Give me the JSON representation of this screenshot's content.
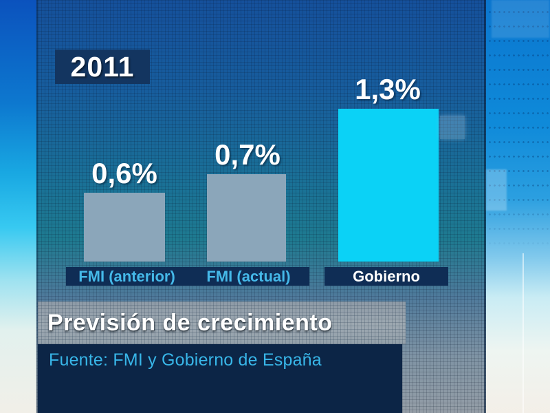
{
  "page": {
    "kind": "tv-news-graphic",
    "language": "es"
  },
  "chart_data": {
    "type": "bar",
    "title": "Previsión de crecimiento",
    "year_label": "2011",
    "source": "Fuente: FMI y  Gobierno de España",
    "categories": [
      "FMI (anterior)",
      "FMI (actual)",
      "Gobierno"
    ],
    "values": [
      0.6,
      0.7,
      1.3
    ],
    "value_labels": [
      "0,6%",
      "0,7%",
      "1,3%"
    ],
    "unit": "%",
    "ylim": [
      0,
      1.5
    ],
    "legend": "none",
    "grid": "decorative-background-grid-only",
    "bar_colors": [
      "#8ba6ba",
      "#8ba6ba",
      "#0bd2f6"
    ],
    "category_label_colors": [
      "#45b9e9",
      "#45b9e9",
      "#ffffff"
    ]
  },
  "colors": {
    "accent_cyan_bar": "#0bd2f6",
    "gray_bar": "#8ba6ba",
    "navy_box": "#0f2d55",
    "year_box": "#133560",
    "source_bar_bg": "#0c2546",
    "title_bar_bg": "#9aa6b0",
    "value_text": "#ffffff",
    "category_text_cyan": "#45b9e9",
    "panel_top_blue": "#15509b",
    "panel_mid_teal": "#1e7a90",
    "panel_bottom_gray": "#949da6",
    "side_bright_blue": "#0f8ad9"
  }
}
